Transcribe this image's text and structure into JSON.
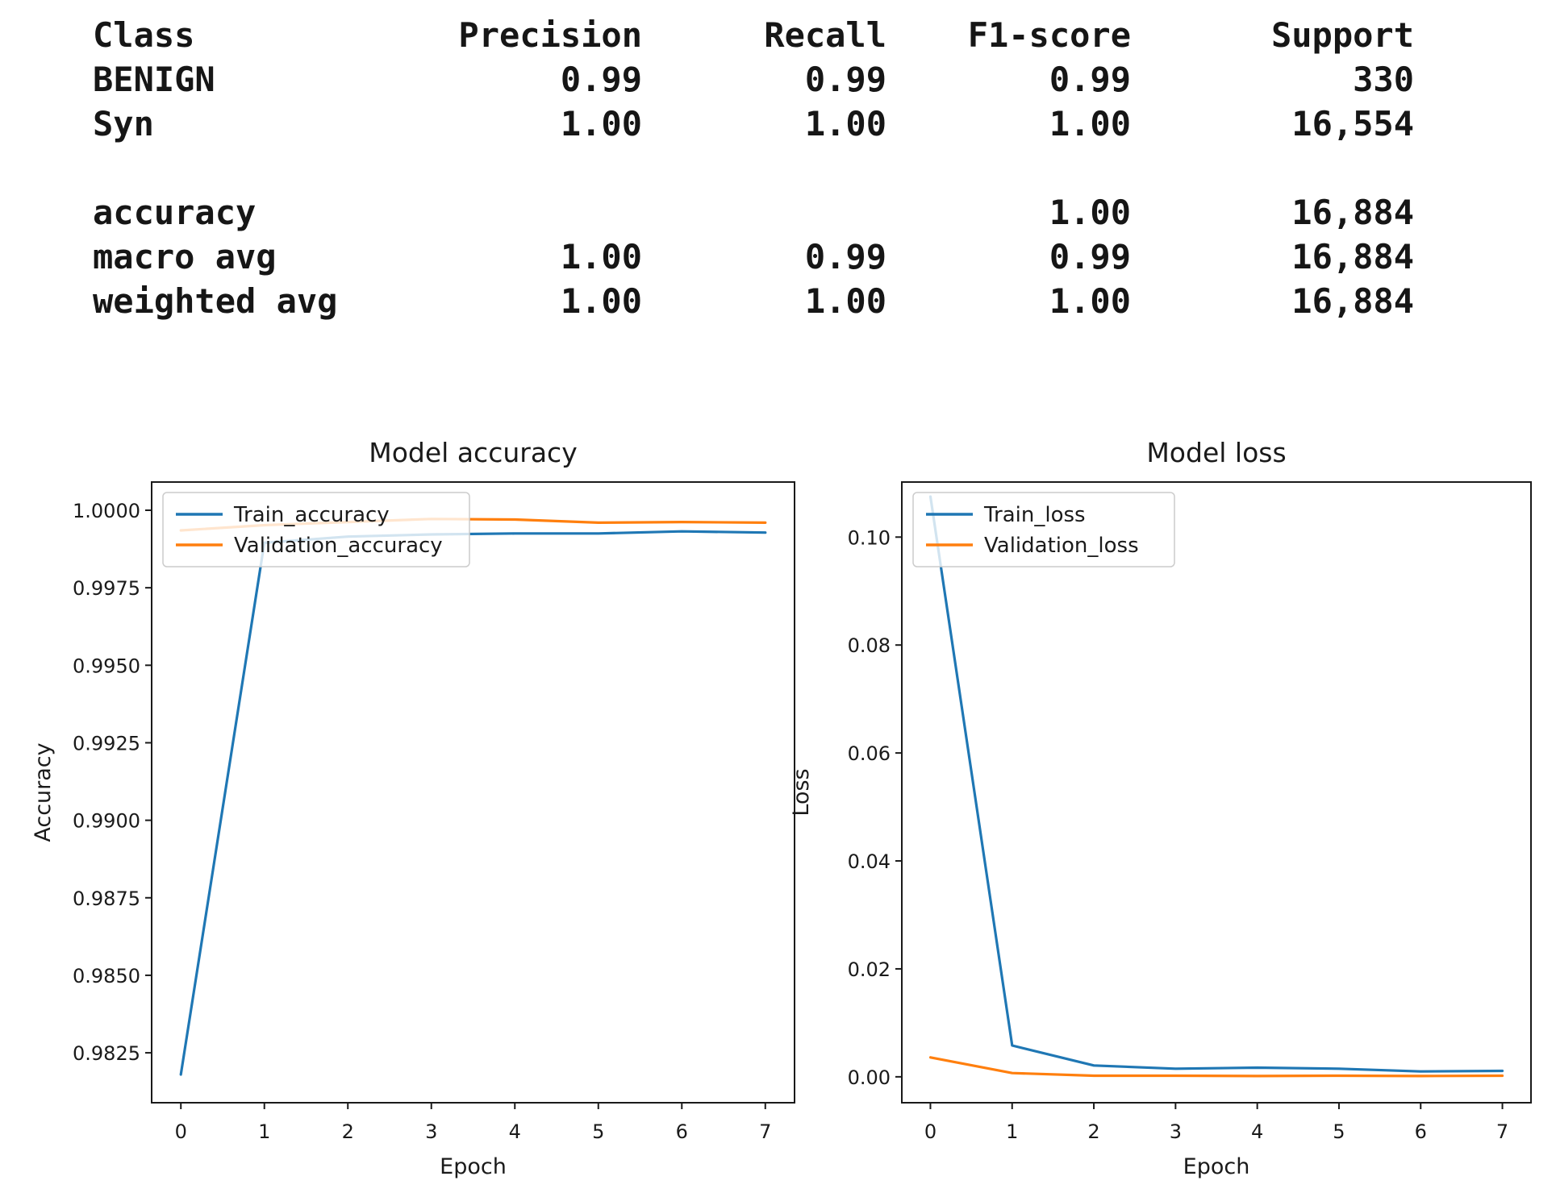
{
  "report": {
    "headers": {
      "class": "Class",
      "precision": "Precision",
      "recall": "Recall",
      "f1": "F1-score",
      "support": "Support"
    },
    "class_rows": [
      {
        "label": "BENIGN",
        "precision": "0.99",
        "recall": "0.99",
        "f1": "0.99",
        "support": "330"
      },
      {
        "label": "Syn",
        "precision": "1.00",
        "recall": "1.00",
        "f1": "1.00",
        "support": "16,554"
      }
    ],
    "summary_rows": [
      {
        "label": "accuracy",
        "precision": "",
        "recall": "",
        "f1": "1.00",
        "support": "16,884"
      },
      {
        "label": "macro avg",
        "precision": "1.00",
        "recall": "0.99",
        "f1": "0.99",
        "support": "16,884"
      },
      {
        "label": "weighted avg",
        "precision": "1.00",
        "recall": "1.00",
        "f1": "1.00",
        "support": "16,884"
      }
    ]
  },
  "chart_data": [
    {
      "type": "line",
      "title": "Model accuracy",
      "xlabel": "Epoch",
      "ylabel": "Accuracy",
      "x": [
        0,
        1,
        2,
        3,
        4,
        5,
        6,
        7
      ],
      "xlim": [
        -0.35,
        7.35
      ],
      "ylim": [
        0.98089,
        1.00091
      ],
      "xticks": [
        0,
        1,
        2,
        3,
        4,
        5,
        6,
        7
      ],
      "xtick_labels": [
        "0",
        "1",
        "2",
        "3",
        "4",
        "5",
        "6",
        "7"
      ],
      "yticks": [
        0.9825,
        0.985,
        0.9875,
        0.99,
        0.9925,
        0.995,
        0.9975,
        1.0
      ],
      "ytick_labels": [
        "0.9825",
        "0.9850",
        "0.9875",
        "0.9900",
        "0.9925",
        "0.9950",
        "0.9975",
        "1.0000"
      ],
      "grid": false,
      "legend_position": "upper left",
      "series": [
        {
          "name": "Train_accuracy",
          "color": "#1f77b4",
          "values": [
            0.9818,
            0.99895,
            0.99915,
            0.99922,
            0.99925,
            0.99925,
            0.99932,
            0.99928
          ]
        },
        {
          "name": "Validation_accuracy",
          "color": "#ff7f0e",
          "values": [
            0.99935,
            0.99952,
            0.99962,
            0.99972,
            0.9997,
            0.9996,
            0.99962,
            0.9996
          ]
        }
      ]
    },
    {
      "type": "line",
      "title": "Model loss",
      "xlabel": "Epoch",
      "ylabel": "Loss",
      "x": [
        0,
        1,
        2,
        3,
        4,
        5,
        6,
        7
      ],
      "xlim": [
        -0.35,
        7.35
      ],
      "ylim": [
        -0.0048,
        0.1102
      ],
      "xticks": [
        0,
        1,
        2,
        3,
        4,
        5,
        6,
        7
      ],
      "xtick_labels": [
        "0",
        "1",
        "2",
        "3",
        "4",
        "5",
        "6",
        "7"
      ],
      "yticks": [
        0.0,
        0.02,
        0.04,
        0.06,
        0.08,
        0.1
      ],
      "ytick_labels": [
        "0.00",
        "0.02",
        "0.04",
        "0.06",
        "0.08",
        "0.10"
      ],
      "grid": false,
      "legend_position": "upper left",
      "series": [
        {
          "name": "Train_loss",
          "color": "#1f77b4",
          "values": [
            0.1075,
            0.0058,
            0.0021,
            0.0015,
            0.0017,
            0.0015,
            0.001,
            0.0011
          ]
        },
        {
          "name": "Validation_loss",
          "color": "#ff7f0e",
          "values": [
            0.0036,
            0.0007,
            0.0002,
            0.0002,
            0.00015,
            0.0002,
            0.00015,
            0.0002
          ]
        }
      ]
    }
  ]
}
